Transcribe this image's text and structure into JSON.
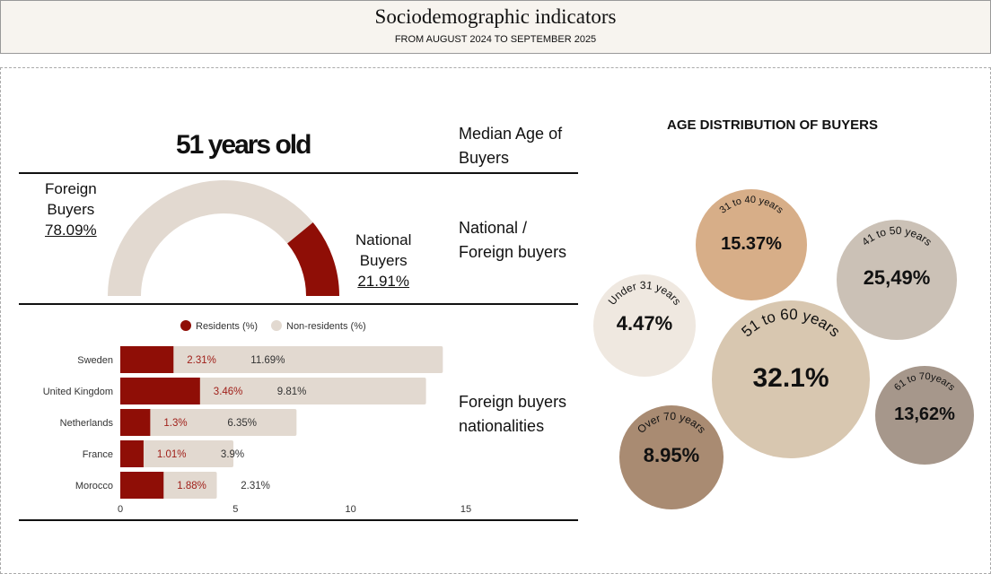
{
  "header": {
    "title": "Sociodemographic indicators",
    "subtitle": "FROM AUGUST 2024  TO SEPTEMBER 2025"
  },
  "median": {
    "value": "51 years old",
    "label_line1": "Median Age of",
    "label_line2": "Buyers"
  },
  "gauge": {
    "section_line1": "National /",
    "section_line2": "Foreign buyers",
    "foreign_line1": "Foreign",
    "foreign_line2": "Buyers",
    "foreign_value": "78.09%",
    "national_line1": "National",
    "national_line2": "Buyers",
    "national_value": "21.91%",
    "foreign_pct": 78.09,
    "national_pct": 21.91,
    "colors": {
      "foreign": "#e2d9d0",
      "national": "#8f0e06"
    }
  },
  "nationalities": {
    "section_line1": "Foreign buyers",
    "section_line2": "nationalities"
  },
  "chart_data": [
    {
      "type": "bar",
      "orientation": "horizontal",
      "stacked": true,
      "categories": [
        "Sweden",
        "United Kingdom",
        "Netherlands",
        "France",
        "Morocco"
      ],
      "series": [
        {
          "name": "Residents (%)",
          "values": [
            2.31,
            3.46,
            1.3,
            1.01,
            1.88
          ],
          "labels": [
            "2.31%",
            "3.46%",
            "1.3%",
            "1.01%",
            "1.88%"
          ],
          "color": "#8f0e06"
        },
        {
          "name": "Non-residents (%)",
          "values": [
            11.69,
            9.81,
            6.35,
            3.9,
            2.31
          ],
          "labels": [
            "11.69%",
            "9.81%",
            "6.35%",
            "3.9%",
            "2.31%"
          ],
          "color": "#e2d9d0"
        }
      ],
      "xlim": [
        0,
        15
      ],
      "xticks": [
        "0",
        "5",
        "10",
        "15"
      ],
      "legend": "top"
    },
    {
      "type": "bubble",
      "title": "AGE DISTRIBUTION OF BUYERS",
      "items": [
        {
          "label": "Under 31 years",
          "value": "4.47%",
          "color": "#efe8e0"
        },
        {
          "label": "31 to 40 years",
          "value": "15.37%",
          "color": "#d7ae88"
        },
        {
          "label": "41 to 50 years",
          "value": "25,49%",
          "color": "#cbc1b6"
        },
        {
          "label": "51 to 60 years",
          "value": "32.1%",
          "color": "#d8c7b0"
        },
        {
          "label": "61 to 70years",
          "value": "13,62%",
          "color": "#a6978b"
        },
        {
          "label": "Over 70 years",
          "value": "8.95%",
          "color": "#a98b72"
        }
      ]
    }
  ]
}
